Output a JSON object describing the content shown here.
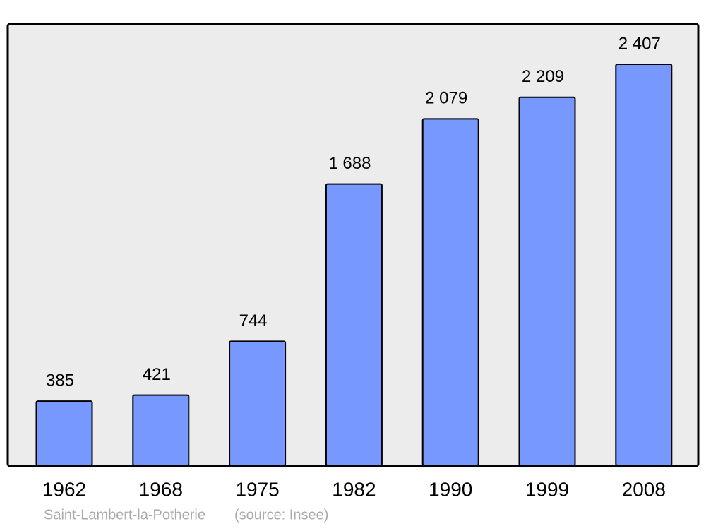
{
  "chart_data": {
    "type": "bar",
    "categories": [
      "1962",
      "1968",
      "1975",
      "1982",
      "1990",
      "1999",
      "2008"
    ],
    "values": [
      385,
      421,
      744,
      1688,
      2079,
      2209,
      2407
    ],
    "value_labels": [
      "385",
      "421",
      "744",
      "1 688",
      "2 079",
      "2 209",
      "2 407"
    ],
    "color": "#7799ff",
    "caption": [
      "Saint-Lambert-la-Potherie",
      "(source: Insee)"
    ]
  }
}
